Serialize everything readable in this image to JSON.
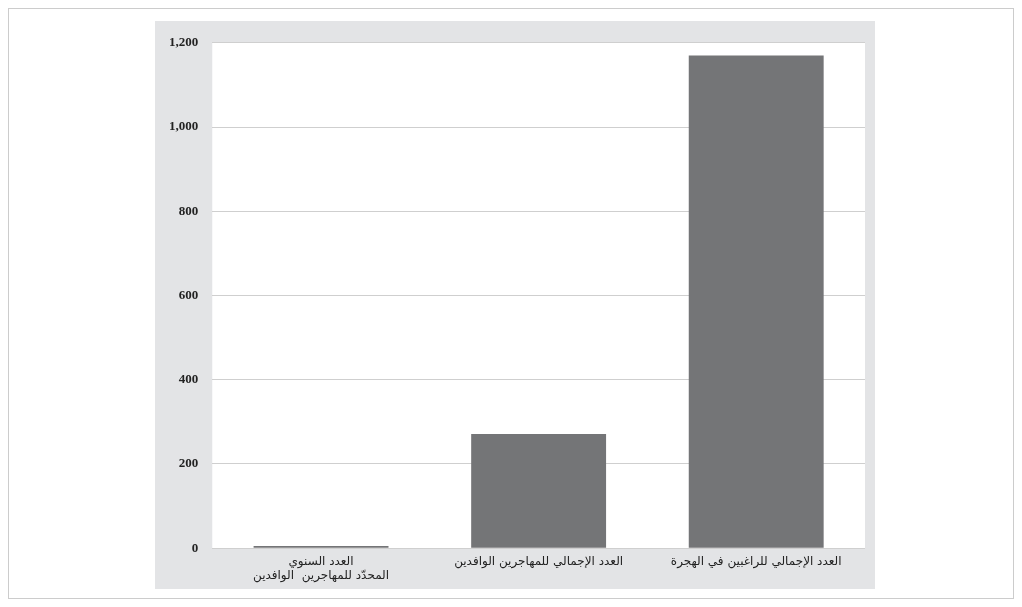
{
  "chart_data": {
    "type": "bar",
    "categories": [
      "العدد السنوي\nالمحدّد للمهاجرين  الوافدين",
      "العدد الإجمالي للمهاجرين الوافدين",
      "العدد الإجمالي للراغبين في الهجرة"
    ],
    "values": [
      5,
      271,
      1170
    ],
    "color": "#747577",
    "ylim": [
      0,
      1200
    ],
    "yticks": [
      0,
      200,
      400,
      600,
      800,
      {
        "value": 1000,
        "label": "1,000"
      },
      {
        "value": 1200,
        "label": "1,200"
      }
    ],
    "grid": "y"
  }
}
